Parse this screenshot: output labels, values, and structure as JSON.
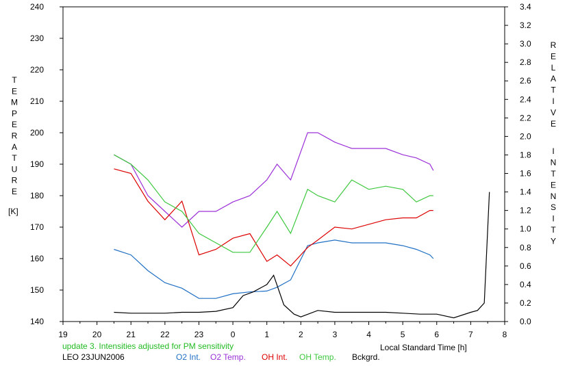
{
  "chart_data": {
    "type": "line",
    "left_axis": {
      "label_letters": [
        "T",
        "E",
        "M",
        "P",
        "E",
        "R",
        "A",
        "T",
        "U",
        "R",
        "E"
      ],
      "unit": "[K]",
      "ylim": [
        140,
        240
      ],
      "ticks": [
        140,
        150,
        160,
        170,
        180,
        190,
        200,
        210,
        220,
        230,
        240
      ]
    },
    "right_axis": {
      "label_letters": [
        "R",
        "E",
        "L",
        "A",
        "T",
        "I",
        "V",
        "E",
        "I",
        "N",
        "T",
        "E",
        "N",
        "S",
        "I",
        "T",
        "Y"
      ],
      "ylim": [
        0.0,
        3.4
      ],
      "ticks": [
        "0.0",
        "0.2",
        "0.4",
        "0.6",
        "0.8",
        "1.0",
        "1.2",
        "1.4",
        "1.6",
        "1.8",
        "2.0",
        "2.2",
        "2.4",
        "2.6",
        "2.8",
        "3.0",
        "3.2",
        "3.4"
      ]
    },
    "x_axis": {
      "label": "Local Standard Time [h]",
      "xlim": [
        19,
        32
      ],
      "tick_labels": [
        "19",
        "20",
        "21",
        "22",
        "23",
        "0",
        "1",
        "2",
        "3",
        "4",
        "5",
        "6",
        "7",
        "8"
      ]
    },
    "notes": [
      "update 3. Intensities adjusted for PM sensitivity",
      "LEO 23JUN2006"
    ],
    "grid": false,
    "series": [
      {
        "name": "O2 Int.",
        "axis": "right",
        "color": "#1f6fc4",
        "x": [
          20.5,
          21.0,
          21.5,
          22.0,
          22.5,
          23.0,
          23.5,
          24.0,
          24.5,
          25.0,
          25.3,
          25.7,
          26.2,
          26.5,
          27.0,
          27.5,
          28.0,
          28.5,
          29.0,
          29.4,
          29.8,
          29.9
        ],
        "y": [
          0.78,
          0.72,
          0.55,
          0.42,
          0.36,
          0.25,
          0.25,
          0.3,
          0.32,
          0.33,
          0.37,
          0.45,
          0.82,
          0.85,
          0.88,
          0.85,
          0.85,
          0.85,
          0.82,
          0.78,
          0.72,
          0.68
        ]
      },
      {
        "name": "O2 Temp.",
        "axis": "left",
        "color": "#9b30d8",
        "x": [
          20.5,
          21.0,
          21.5,
          22.0,
          22.5,
          23.0,
          23.5,
          24.0,
          24.5,
          25.0,
          25.3,
          25.7,
          26.2,
          26.5,
          27.0,
          27.5,
          28.0,
          28.5,
          29.0,
          29.4,
          29.8,
          29.9
        ],
        "y": [
          193,
          190,
          180,
          175,
          170,
          175,
          175,
          178,
          180,
          185,
          190,
          185,
          200,
          200,
          197,
          195,
          195,
          195,
          193,
          192,
          190,
          188
        ]
      },
      {
        "name": "OH Int.",
        "axis": "right",
        "color": "#dd0000",
        "x": [
          20.5,
          21.0,
          21.5,
          22.0,
          22.5,
          23.0,
          23.5,
          24.0,
          24.5,
          25.0,
          25.3,
          25.7,
          26.2,
          26.5,
          27.0,
          27.5,
          28.0,
          28.5,
          29.0,
          29.4,
          29.8,
          29.9
        ],
        "y": [
          1.65,
          1.6,
          1.3,
          1.1,
          1.3,
          0.72,
          0.78,
          0.9,
          0.95,
          0.65,
          0.72,
          0.6,
          0.8,
          0.88,
          1.02,
          1.0,
          1.05,
          1.1,
          1.12,
          1.12,
          1.2,
          1.2
        ]
      },
      {
        "name": "OH Temp.",
        "axis": "left",
        "color": "#3cc83c",
        "x": [
          20.5,
          21.0,
          21.5,
          22.0,
          22.5,
          23.0,
          23.5,
          24.0,
          24.5,
          25.0,
          25.3,
          25.7,
          26.2,
          26.5,
          27.0,
          27.5,
          28.0,
          28.5,
          29.0,
          29.4,
          29.8,
          29.9
        ],
        "y": [
          193,
          190,
          185,
          178,
          175,
          168,
          165,
          162,
          162,
          170,
          175,
          168,
          182,
          180,
          178,
          185,
          182,
          183,
          182,
          178,
          180,
          180
        ]
      },
      {
        "name": "Bckgrd.",
        "axis": "right",
        "color": "#000000",
        "x": [
          20.5,
          21.0,
          21.5,
          22.0,
          22.5,
          23.0,
          23.5,
          24.0,
          24.3,
          24.6,
          25.0,
          25.2,
          25.5,
          25.8,
          26.0,
          26.5,
          27.0,
          27.5,
          28.0,
          28.5,
          29.0,
          29.5,
          30.0,
          30.5,
          31.0,
          31.2,
          31.4,
          31.55
        ],
        "y": [
          0.1,
          0.09,
          0.09,
          0.09,
          0.1,
          0.1,
          0.11,
          0.15,
          0.28,
          0.32,
          0.4,
          0.5,
          0.18,
          0.08,
          0.05,
          0.12,
          0.1,
          0.1,
          0.1,
          0.1,
          0.09,
          0.08,
          0.08,
          0.04,
          0.1,
          0.12,
          0.2,
          1.4
        ]
      }
    ]
  },
  "legend": [
    "O2 Int.",
    "O2 Temp.",
    "OH Int.",
    "OH Temp.",
    "Bckgrd."
  ],
  "colors": {
    "o2_int": "#1f6fc4",
    "o2_temp": "#9b30d8",
    "oh_int": "#dd0000",
    "oh_temp": "#3cc83c",
    "background": "#000000",
    "note": "#22bb22"
  }
}
